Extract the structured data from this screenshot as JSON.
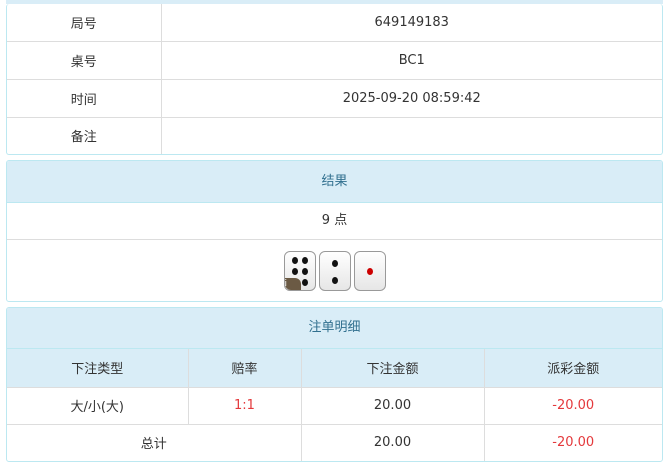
{
  "info": {
    "rows": [
      {
        "label": "局号",
        "value": "649149183"
      },
      {
        "label": "桌号",
        "value": "BC1"
      },
      {
        "label": "时间",
        "value": "2025-09-20 08:59:42"
      },
      {
        "label": "备注",
        "value": ""
      }
    ]
  },
  "result": {
    "title": "结果",
    "points": "9 点",
    "dice": [
      6,
      2,
      1
    ],
    "info_badge": "i"
  },
  "bets": {
    "title": "注单明细",
    "headers": [
      "下注类型",
      "赔率",
      "下注金额",
      "派彩金额"
    ],
    "rows": [
      {
        "type": "大/小(大)",
        "odds": "1:1",
        "amount": "20.00",
        "payout": "-20.00"
      }
    ],
    "total": {
      "label": "总计",
      "amount": "20.00",
      "payout": "-20.00"
    }
  },
  "colors": {
    "header_bg": "#d9edf7",
    "header_text": "#31708f",
    "negative": "#e4393c"
  }
}
